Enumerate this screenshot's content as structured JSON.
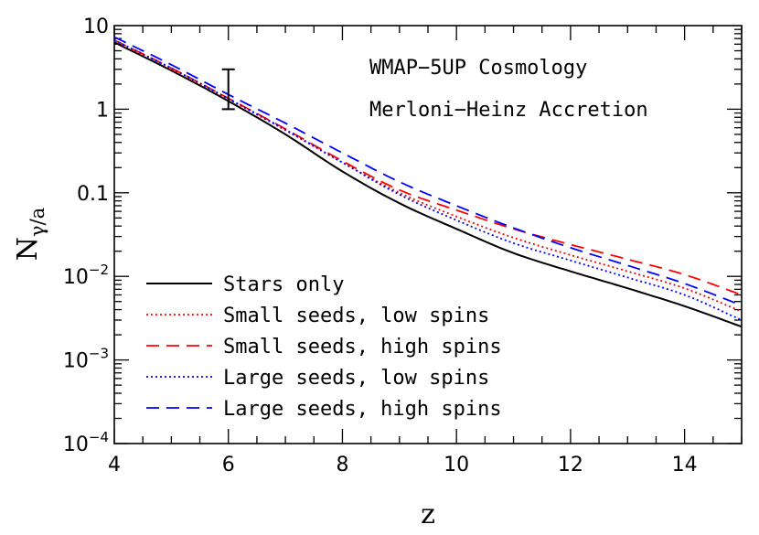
{
  "chart_data": {
    "type": "line",
    "xlabel": "z",
    "ylabel": "N",
    "ylabel_sub": "γ/a",
    "xlim": [
      4,
      15
    ],
    "ylim": [
      0.0001,
      10
    ],
    "yscale": "log",
    "grid": false,
    "legend_position": "bottom-left",
    "x_ticks": [
      {
        "value": 4,
        "label": "4"
      },
      {
        "value": 6,
        "label": "6"
      },
      {
        "value": 8,
        "label": "8"
      },
      {
        "value": 10,
        "label": "10"
      },
      {
        "value": 12,
        "label": "12"
      },
      {
        "value": 14,
        "label": "14"
      }
    ],
    "y_ticks": [
      {
        "value": 10,
        "base": "10",
        "exp": ""
      },
      {
        "value": 1,
        "base": "1",
        "exp": ""
      },
      {
        "value": 0.1,
        "base": "0.1",
        "exp": ""
      },
      {
        "value": 0.01,
        "base": "10",
        "exp": "−2"
      },
      {
        "value": 0.001,
        "base": "10",
        "exp": "−3"
      },
      {
        "value": 0.0001,
        "base": "10",
        "exp": "−4"
      }
    ],
    "annotations": [
      "WMAP−5UP Cosmology",
      "Merloni−Heinz Accretion"
    ],
    "error_bar": {
      "x": 6,
      "y_low": 1.0,
      "y_high": 3.0
    },
    "series": [
      {
        "name": "Stars only",
        "color": "#000000",
        "dash": "solid",
        "x": [
          4,
          5,
          6,
          7,
          8,
          9,
          10,
          11,
          12,
          13,
          14,
          15
        ],
        "y": [
          6.3,
          2.9,
          1.25,
          0.5,
          0.18,
          0.075,
          0.037,
          0.019,
          0.0115,
          0.0072,
          0.0044,
          0.0025
        ]
      },
      {
        "name": "Small seeds, low spins",
        "color": "#ff0000",
        "dash": "dotted",
        "x": [
          4,
          5,
          6,
          7,
          8,
          9,
          10,
          11,
          12,
          13,
          14,
          15
        ],
        "y": [
          6.6,
          3.05,
          1.32,
          0.56,
          0.23,
          0.1,
          0.052,
          0.029,
          0.018,
          0.0115,
          0.0072,
          0.0038
        ]
      },
      {
        "name": "Small seeds, high spins",
        "color": "#ff0000",
        "dash": "dashed",
        "x": [
          4,
          5,
          6,
          7,
          8,
          9,
          10,
          11,
          12,
          13,
          14,
          15
        ],
        "y": [
          6.7,
          3.1,
          1.35,
          0.58,
          0.24,
          0.108,
          0.062,
          0.037,
          0.024,
          0.016,
          0.0105,
          0.006
        ]
      },
      {
        "name": "Large seeds, low spins",
        "color": "#0000ff",
        "dash": "dotted",
        "x": [
          4,
          5,
          6,
          7,
          8,
          9,
          10,
          11,
          12,
          13,
          14,
          15
        ],
        "y": [
          6.7,
          3.1,
          1.34,
          0.57,
          0.23,
          0.095,
          0.047,
          0.025,
          0.0155,
          0.0097,
          0.006,
          0.003
        ]
      },
      {
        "name": "Large seeds, high spins",
        "color": "#0000ff",
        "dash": "dashed",
        "x": [
          4,
          5,
          6,
          7,
          8,
          9,
          10,
          11,
          12,
          13,
          14,
          15
        ],
        "y": [
          7.3,
          3.4,
          1.5,
          0.68,
          0.3,
          0.135,
          0.07,
          0.038,
          0.022,
          0.0135,
          0.0082,
          0.0045
        ]
      }
    ]
  }
}
